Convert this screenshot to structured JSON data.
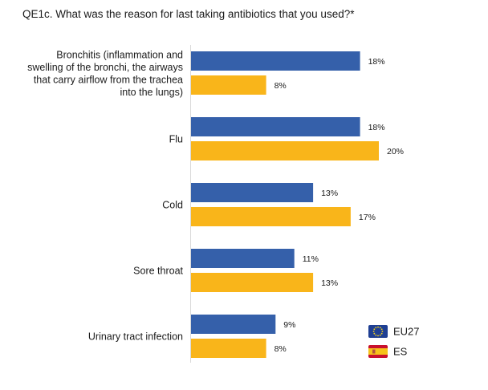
{
  "title": "QE1c. What was the reason for last taking antibiotics that you used?*",
  "colors": {
    "eu27": "#3560aa",
    "es": "#f9b51a"
  },
  "legend": [
    {
      "name": "EU27",
      "icon": "eu-flag-icon"
    },
    {
      "name": "ES",
      "icon": "spain-flag-icon"
    }
  ],
  "chart_data": {
    "type": "bar",
    "orientation": "horizontal",
    "categories": [
      [
        "Bronchitis (inflammation and",
        "swelling of the bronchi, the airways",
        "that carry airflow from the trachea",
        "into the lungs)"
      ],
      [
        "Flu"
      ],
      [
        "Cold"
      ],
      [
        "Sore throat"
      ],
      [
        "Urinary tract infection"
      ]
    ],
    "series": [
      {
        "name": "EU27",
        "values": [
          18,
          18,
          13,
          11,
          9
        ]
      },
      {
        "name": "ES",
        "values": [
          8,
          20,
          17,
          13,
          8
        ]
      }
    ],
    "value_labels": [
      [
        "18%",
        "18%",
        "13%",
        "11%",
        "9%"
      ],
      [
        "8%",
        "20%",
        "17%",
        "13%",
        "8%"
      ]
    ],
    "unit": "%",
    "legend_position": "bottom-right",
    "grid": false
  }
}
